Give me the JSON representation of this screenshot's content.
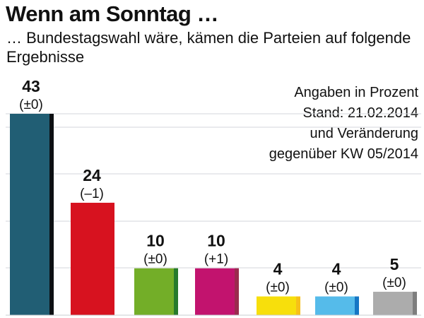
{
  "header": {
    "title": "Wenn am Sonntag …",
    "subtitle": "… Bundestagswahl wäre, kämen die Parteien auf folgende Ergebnisse"
  },
  "note": {
    "lines": [
      "Angaben in Prozent",
      "Stand: 21.02.2014",
      "und Veränderung",
      "gegenüber KW 05/2014"
    ]
  },
  "chart_data": {
    "type": "bar",
    "title": "Wenn am Sonntag …",
    "subtitle": "… Bundestagswahl wäre, kämen die Parteien auf folgende Ergebnisse",
    "xlabel": "",
    "ylabel": "",
    "unit": "Angaben in Prozent",
    "ylim": [
      0,
      43
    ],
    "grid": true,
    "legend": "none",
    "values": [
      43,
      24,
      10,
      10,
      4,
      4,
      5
    ],
    "value_labels": [
      "43",
      "24",
      "10",
      "10",
      "4",
      "4",
      "5"
    ],
    "changes": [
      "(±0)",
      "(–1)",
      "(±0)",
      "(+1)",
      "(±0)",
      "(±0)",
      "(±0)"
    ],
    "colors": [
      "#215e74",
      "#d7121f",
      "#73ae28",
      "#c2136e",
      "#f7df0c",
      "#55bbea",
      "#acacac"
    ],
    "shade_colors": [
      "#0c0f12",
      "#d7121f",
      "#267a2b",
      "#9a2b4e",
      "#f7c019",
      "#1676c4",
      "#7e7e7e"
    ]
  }
}
